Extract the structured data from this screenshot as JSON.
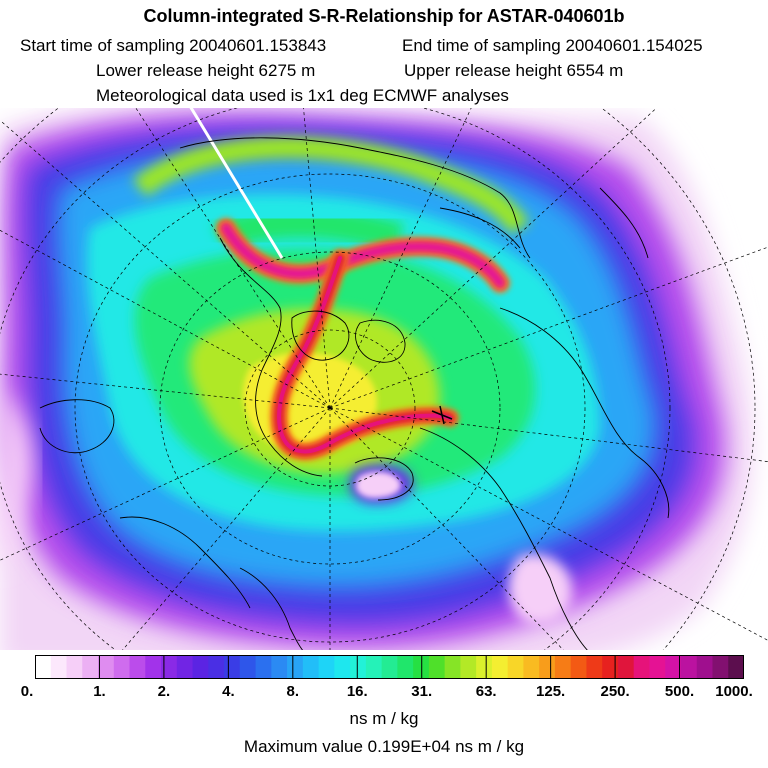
{
  "header": {
    "title": "Column-integrated S-R-Relationship for ASTAR-040601b",
    "start": "Start time of sampling 20040601.153843",
    "end": "End time of sampling 20040601.154025",
    "lower": "Lower release height 6275 m",
    "upper": "Upper release height 6554 m",
    "met": "Meteorological data used is 1x1 deg ECMWF analyses"
  },
  "colorbar": {
    "labels": [
      "0.",
      "1.",
      "2.",
      "4.",
      "8.",
      "16.",
      "31.",
      "63.",
      "125.",
      "250.",
      "500.",
      "1000."
    ],
    "colors": [
      "#ffffff",
      "#fce8fc",
      "#f6cff8",
      "#ecb0f4",
      "#df8cf0",
      "#cf6cee",
      "#bb4ceb",
      "#a233ea",
      "#8a2ae6",
      "#7125e4",
      "#5b24e3",
      "#4a2fe4",
      "#3a3de6",
      "#2e56ea",
      "#2b70ef",
      "#2b8af3",
      "#28a4f6",
      "#22bef8",
      "#1ed4f7",
      "#1ee7ee",
      "#22f2d8",
      "#25f2b8",
      "#23ec93",
      "#20e66b",
      "#26e043",
      "#4fe02a",
      "#86e426",
      "#b3e926",
      "#daf02c",
      "#f4ee31",
      "#f8d628",
      "#f9bb21",
      "#f89d1b",
      "#f67c16",
      "#f35a14",
      "#ee3a18",
      "#e7211f",
      "#e0153c",
      "#e6137a",
      "#e51294",
      "#d412a6",
      "#bb12a0",
      "#9f0f8e",
      "#821070",
      "#5c0e4e"
    ]
  },
  "units": "ns m / kg",
  "max_value": "Maximum value  0.199E+04 ns m / kg"
}
